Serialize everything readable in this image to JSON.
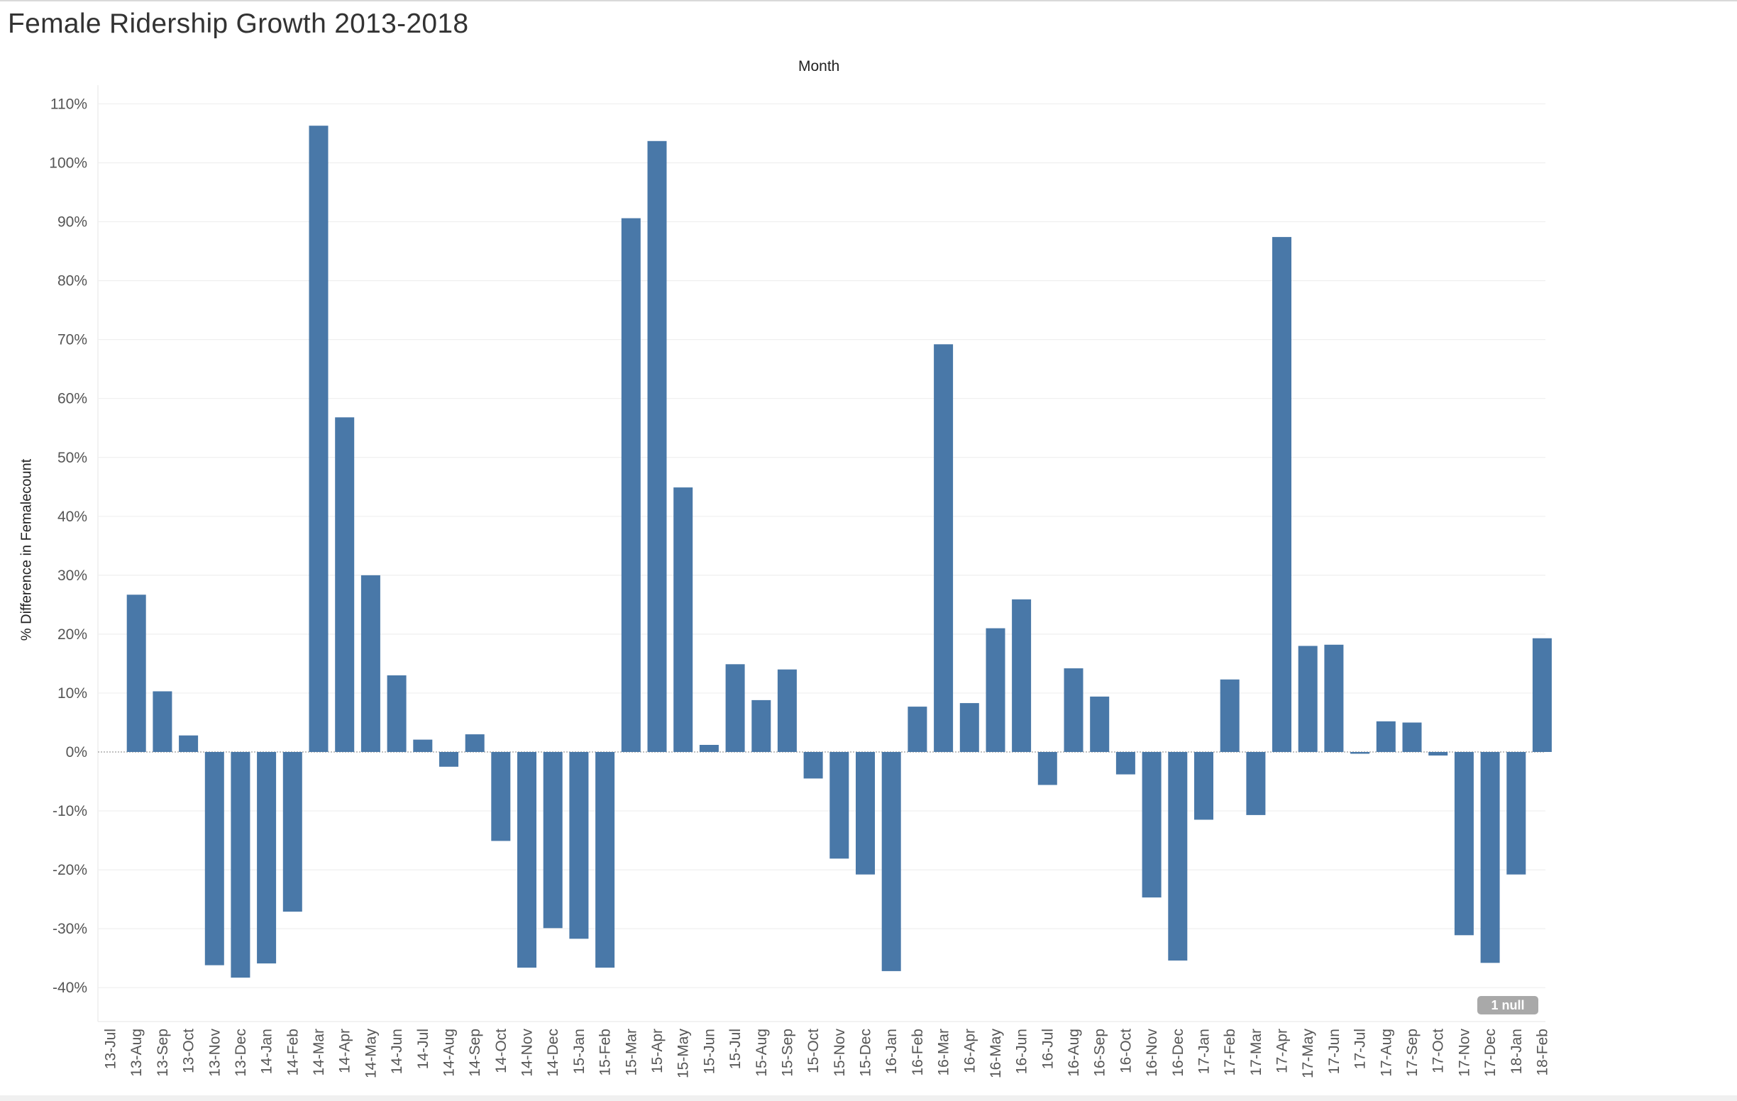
{
  "title": "Female Ridership Growth 2013-2018",
  "null_badge": "1 null",
  "chart_data": {
    "type": "bar",
    "title": "Female Ridership Growth 2013-2018",
    "xlabel": "Month",
    "ylabel": "% Difference in Femalecount",
    "ylim": [
      -45,
      110
    ],
    "yticks": [
      -40,
      -30,
      -20,
      -10,
      0,
      10,
      20,
      30,
      40,
      50,
      60,
      70,
      80,
      90,
      100,
      110
    ],
    "ytick_labels": [
      "-40%",
      "-30%",
      "-20%",
      "-10%",
      "0%",
      "10%",
      "20%",
      "30%",
      "40%",
      "50%",
      "60%",
      "70%",
      "80%",
      "90%",
      "100%",
      "110%"
    ],
    "grid": true,
    "bar_color": "#4978a8",
    "categories": [
      "13-Jul",
      "13-Aug",
      "13-Sep",
      "13-Oct",
      "13-Nov",
      "13-Dec",
      "14-Jan",
      "14-Feb",
      "14-Mar",
      "14-Apr",
      "14-May",
      "14-Jun",
      "14-Jul",
      "14-Aug",
      "14-Sep",
      "14-Oct",
      "14-Nov",
      "14-Dec",
      "15-Jan",
      "15-Feb",
      "15-Mar",
      "15-Apr",
      "15-May",
      "15-Jun",
      "15-Jul",
      "15-Aug",
      "15-Sep",
      "15-Oct",
      "15-Nov",
      "15-Dec",
      "16-Jan",
      "16-Feb",
      "16-Mar",
      "16-Apr",
      "16-May",
      "16-Jun",
      "16-Jul",
      "16-Aug",
      "16-Sep",
      "16-Oct",
      "16-Nov",
      "16-Dec",
      "17-Jan",
      "17-Feb",
      "17-Mar",
      "17-Apr",
      "17-May",
      "17-Jun",
      "17-Jul",
      "17-Aug",
      "17-Sep",
      "17-Oct",
      "17-Nov",
      "17-Dec",
      "18-Jan",
      "18-Feb"
    ],
    "values": [
      null,
      26.7,
      10.3,
      2.8,
      -36.2,
      -38.3,
      -35.9,
      -27.1,
      106.3,
      56.8,
      30.0,
      13.0,
      2.1,
      -2.5,
      3.0,
      -15.1,
      -36.6,
      -29.9,
      -31.7,
      -36.6,
      90.6,
      103.7,
      44.9,
      1.2,
      14.9,
      8.8,
      14.0,
      -4.5,
      -18.1,
      -20.8,
      -37.2,
      7.7,
      69.2,
      8.3,
      21.0,
      25.9,
      -5.6,
      14.2,
      9.4,
      -3.8,
      -24.7,
      -35.4,
      -11.5,
      12.3,
      -10.7,
      87.4,
      18.0,
      18.2,
      -0.3,
      5.2,
      5.0,
      -0.6,
      -31.1,
      -35.8,
      -20.8,
      19.3
    ]
  }
}
